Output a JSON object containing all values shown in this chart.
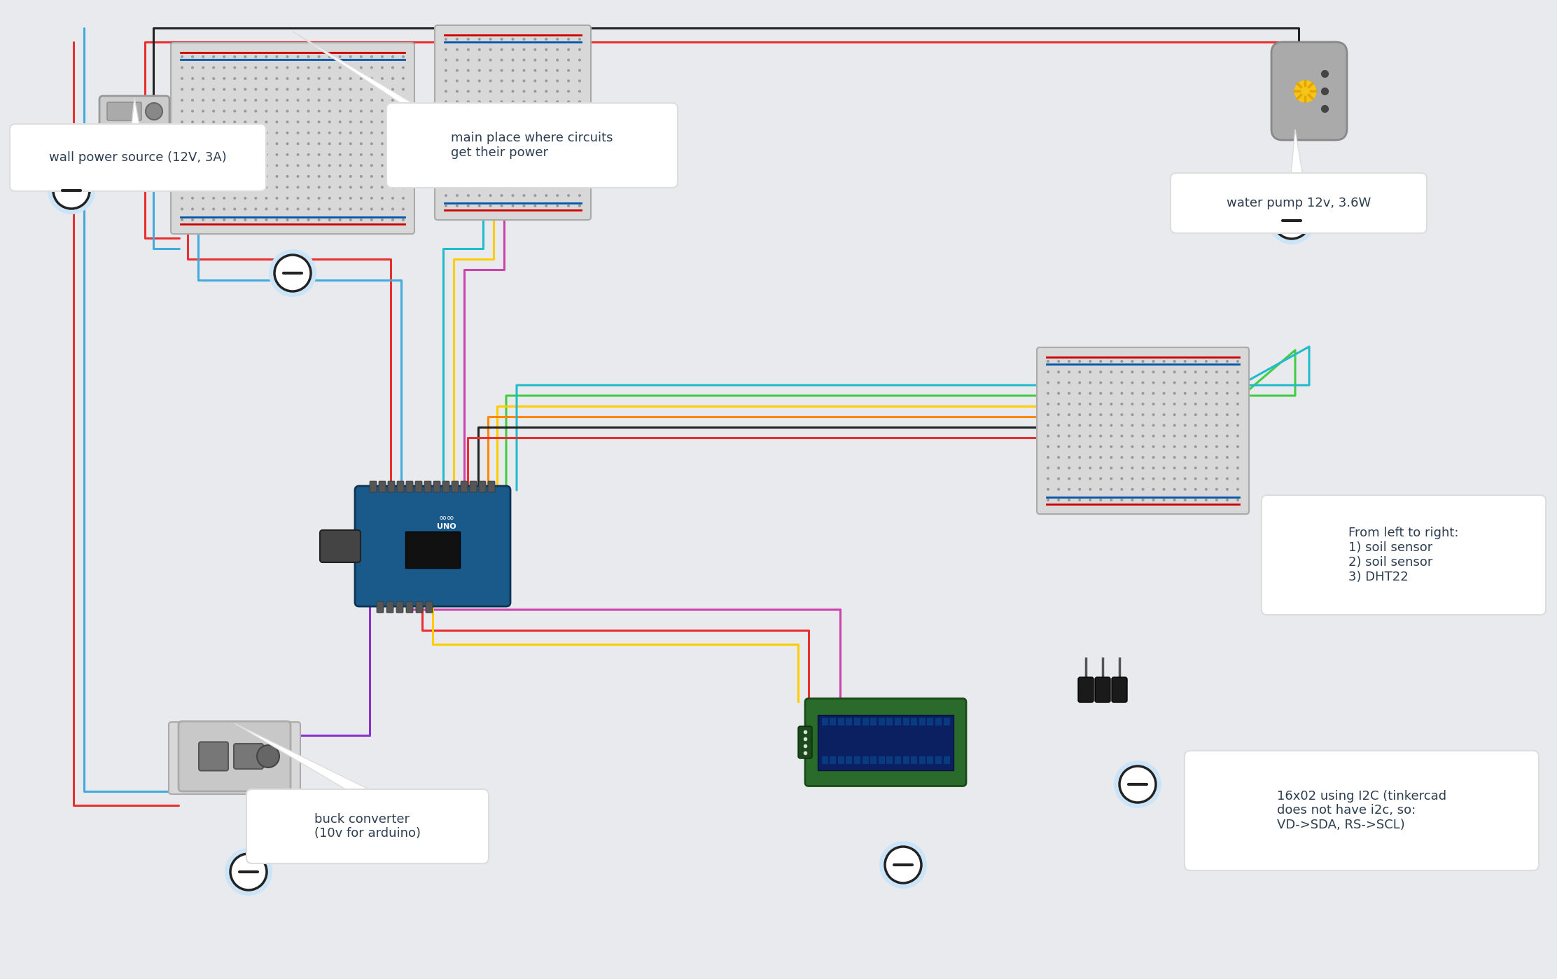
{
  "bg_color": "#e8eaed",
  "text_color": "#2d3e50",
  "wire_colors": {
    "red": "#e83030",
    "black": "#222222",
    "blue": "#44aadd",
    "green": "#44cc44",
    "yellow": "#ffcc00",
    "orange": "#ff8800",
    "cyan": "#22bbcc",
    "magenta": "#cc44aa",
    "purple": "#8833cc"
  },
  "labels": {
    "wall_power": "wall power source (12V, 3A)",
    "main_bb": "main place where circuits\nget their power",
    "water_pump": "water pump 12v, 3.6W",
    "buck_conv": "buck converter\n(10v for arduino)",
    "sensors": "From left to right:\n1) soil sensor\n2) soil sensor\n3) DHT22",
    "lcd": "16x02 using I2C (tinkercad\ndoes not have i2c, so:\nVD->SDA, RS->SCL)"
  }
}
